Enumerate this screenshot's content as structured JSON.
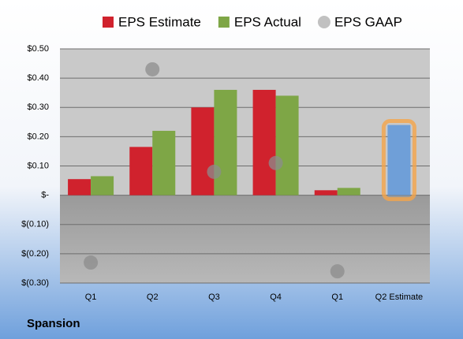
{
  "chart_data": {
    "type": "bar",
    "categories": [
      "Q1",
      "Q2",
      "Q3",
      "Q4",
      "Q1",
      "Q2 Estimate"
    ],
    "series": [
      {
        "name": "EPS Estimate",
        "color": "#d0222d",
        "values": [
          0.055,
          0.165,
          0.3,
          0.36,
          0.017,
          0.24
        ],
        "colors": [
          "#d0222d",
          "#d0222d",
          "#d0222d",
          "#d0222d",
          "#d0222d",
          "#6f9fd8"
        ]
      },
      {
        "name": "EPS Actual",
        "color": "#7ea646",
        "values": [
          0.065,
          0.22,
          0.36,
          0.34,
          0.025,
          null
        ]
      },
      {
        "name": "EPS GAAP",
        "color": "#a6a6a6",
        "marker": "circle",
        "values": [
          -0.23,
          0.43,
          0.08,
          0.11,
          -0.26,
          null
        ]
      }
    ],
    "ylim": [
      -0.3,
      0.5
    ],
    "yticks": [
      {
        "value": 0.5,
        "label": "$0.50"
      },
      {
        "value": 0.4,
        "label": "$0.40"
      },
      {
        "value": 0.3,
        "label": "$0.30"
      },
      {
        "value": 0.2,
        "label": "$0.20"
      },
      {
        "value": 0.1,
        "label": "$0.10"
      },
      {
        "value": 0,
        "label": "$-"
      },
      {
        "value": -0.1,
        "label": "$(0.10)"
      },
      {
        "value": -0.2,
        "label": "$(0.20)"
      },
      {
        "value": -0.3,
        "label": "$(0.30)"
      }
    ],
    "grid": true,
    "legend": "top",
    "footer": "Spansion"
  }
}
